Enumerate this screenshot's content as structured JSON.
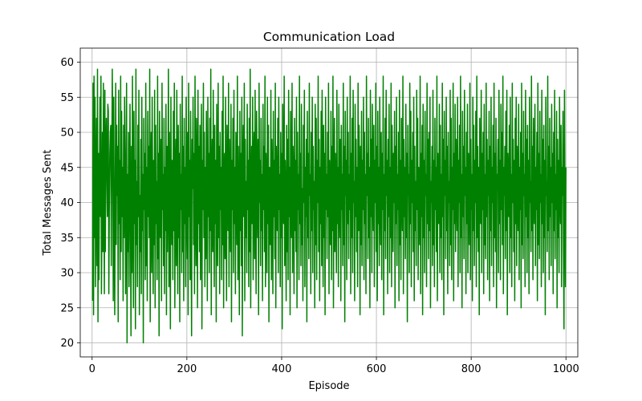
{
  "chart_data": {
    "type": "line",
    "title": "Communication Load",
    "xlabel": "Episode",
    "ylabel": "Total Messages Sent",
    "xlim": [
      -25,
      1025
    ],
    "ylim": [
      18,
      62
    ],
    "xticks": [
      0,
      200,
      400,
      600,
      800,
      1000
    ],
    "yticks": [
      20,
      25,
      30,
      35,
      40,
      45,
      50,
      55,
      60
    ],
    "grid": true,
    "series": [
      {
        "color": "#008000",
        "x_start": 1,
        "x_step": 1,
        "values": [
          26,
          57,
          24,
          58,
          35,
          55,
          28,
          42,
          52,
          31,
          59,
          23,
          47,
          29,
          44,
          55,
          38,
          58,
          27,
          36,
          50,
          33,
          57,
          41,
          27,
          56,
          33,
          48,
          52,
          44,
          38,
          54,
          53,
          27,
          39,
          47,
          50,
          51,
          31,
          45,
          59,
          49,
          26,
          55,
          36,
          24,
          42,
          57,
          34,
          51,
          41,
          48,
          23,
          56,
          37,
          46,
          29,
          58,
          33,
          53,
          38,
          45,
          26,
          51,
          35,
          55,
          47,
          27,
          39,
          57,
          20,
          44,
          33,
          50,
          28,
          42,
          54,
          36,
          21,
          48,
          30,
          58,
          40,
          25,
          53,
          37,
          46,
          22,
          59,
          34,
          43,
          28,
          51,
          38,
          56,
          24,
          41,
          33,
          49,
          27,
          55,
          36,
          44,
          20,
          52,
          39,
          47,
          29,
          57,
          31,
          45,
          26,
          53,
          38,
          48,
          35,
          59,
          23,
          42,
          50,
          30,
          55,
          40,
          27,
          46,
          34,
          56,
          25,
          51,
          37,
          43,
          29,
          58,
          32,
          47,
          21,
          53,
          41,
          35,
          49,
          26,
          57,
          39,
          44,
          31,
          52,
          27,
          45,
          36,
          54,
          24,
          48,
          33,
          42,
          59,
          28,
          50,
          38,
          22,
          55,
          41,
          34,
          46,
          29,
          53,
          36,
          57,
          25,
          43,
          49,
          31,
          56,
          40,
          27,
          51,
          35,
          47,
          23,
          54,
          39,
          44,
          30,
          58,
          33,
          48,
          26,
          52,
          37,
          45,
          28,
          55,
          41,
          32,
          50,
          24,
          57,
          38,
          46,
          29,
          53,
          36,
          21,
          49,
          42,
          55,
          34,
          47,
          27,
          58,
          40,
          31,
          52,
          44,
          25,
          56,
          37,
          48,
          33,
          51,
          29,
          43,
          54,
          22,
          46,
          39,
          57,
          35,
          50,
          28,
          45,
          32,
          53,
          41,
          26,
          55,
          38,
          47,
          30,
          52,
          36,
          59,
          24,
          44,
          49,
          33,
          56,
          40,
          28,
          51,
          37,
          46,
          23,
          54,
          42,
          31,
          57,
          35,
          48,
          27,
          50,
          39,
          45,
          29,
          53,
          34,
          58,
          25,
          43,
          47,
          32,
          55,
          38,
          26,
          51,
          44,
          36,
          57,
          28,
          49,
          41,
          33,
          54,
          23,
          46,
          39,
          52,
          30,
          56,
          37,
          45,
          27,
          50,
          42,
          34,
          58,
          29,
          48,
          40,
          24,
          53,
          36,
          47,
          31,
          55,
          21,
          44,
          51,
          38,
          57,
          26,
          49,
          35,
          43,
          30,
          54,
          39,
          46,
          28,
          52,
          33,
          59,
          25,
          41,
          48,
          37,
          55,
          29,
          45,
          50,
          32,
          56,
          38,
          27,
          53,
          43,
          35,
          49,
          24,
          57,
          40,
          46,
          31,
          52,
          36,
          44,
          26,
          54,
          39,
          48,
          33,
          58,
          28,
          47,
          42,
          30,
          55,
          37,
          51,
          23,
          45,
          40,
          34,
          56,
          29,
          49,
          43,
          27,
          53,
          38,
          46,
          32,
          57,
          25,
          48,
          41,
          36,
          52,
          30,
          55,
          39,
          44,
          28,
          50,
          35,
          47,
          22,
          54,
          42,
          37,
          58,
          31,
          46,
          40,
          26,
          51,
          33,
          49,
          29,
          56,
          38,
          45,
          24,
          53,
          41,
          35,
          57,
          30,
          48,
          43,
          27,
          52,
          36,
          46,
          33,
          55,
          25,
          50,
          39,
          44,
          29,
          58,
          37,
          47,
          31,
          54,
          34,
          42,
          26,
          51,
          40,
          56,
          28,
          45,
          38,
          49,
          23,
          53,
          35,
          47,
          32,
          57,
          41,
          44,
          27,
          50,
          36,
          55,
          30,
          48,
          39,
          43,
          25,
          54,
          34,
          52,
          29,
          46,
          40,
          58,
          33,
          49,
          26,
          45,
          37,
          53,
          31,
          56,
          42,
          28,
          51,
          35,
          47,
          24,
          55,
          39,
          44,
          32,
          50,
          38,
          57,
          27,
          46,
          41,
          34,
          53,
          29,
          48,
          36,
          58,
          25,
          43,
          52,
          33,
          47,
          40,
          30,
          56,
          37,
          45,
          28,
          54,
          42,
          35,
          49,
          26,
          51,
          39,
          44,
          31,
          57,
          34,
          48,
          23,
          53,
          41,
          46,
          29,
          55,
          37,
          50,
          32,
          44,
          39,
          58,
          27,
          47,
          35,
          52,
          30,
          56,
          40,
          43,
          26,
          54,
          38,
          49,
          33,
          45,
          28,
          57,
          36,
          51,
          42,
          24,
          48,
          34,
          53,
          31,
          46,
          39,
          55,
          29,
          50,
          37,
          44,
          27,
          58,
          41,
          47,
          32,
          52,
          35,
          45,
          25,
          56,
          38,
          49,
          30,
          54,
          43,
          36,
          51,
          28,
          46,
          40,
          57,
          33,
          48,
          26,
          53,
          37,
          45,
          31,
          55,
          42,
          34,
          50,
          29,
          47,
          39,
          58,
          24,
          44,
          36,
          52,
          32,
          56,
          41,
          46,
          27,
          49,
          38,
          54,
          30,
          45,
          35,
          57,
          28,
          51,
          43,
          33,
          47,
          40,
          53,
          25,
          48,
          37,
          55,
          31,
          44,
          39,
          50,
          26,
          56,
          34,
          46,
          29,
          52,
          42,
          36,
          58,
          27,
          49,
          38,
          45,
          32,
          54,
          35,
          47,
          23,
          51,
          41,
          44,
          30,
          57,
          37,
          53,
          28,
          46,
          40,
          50,
          33,
          55,
          26,
          48,
          36,
          43,
          31,
          56,
          39,
          52,
          29,
          45,
          42,
          34,
          58,
          27,
          47,
          38,
          51,
          24,
          54,
          35,
          46,
          30,
          53,
          41,
          44,
          28,
          57,
          37,
          49,
          32,
          50,
          36,
          55,
          25,
          43,
          40,
          48,
          31,
          56,
          34,
          46,
          28,
          52,
          39,
          45,
          33,
          58,
          26,
          47,
          42,
          37,
          54,
          30,
          51,
          35,
          44,
          29,
          57,
          38,
          49,
          24,
          53,
          41,
          46,
          32,
          55,
          36,
          48,
          27,
          50,
          40,
          43,
          31,
          56,
          34,
          52,
          29,
          45,
          39,
          57,
          26,
          47,
          37,
          54,
          33,
          49,
          42,
          36,
          55,
          28,
          46,
          40,
          51,
          30,
          58,
          35,
          44,
          25,
          53,
          38,
          48,
          32,
          56,
          41,
          45,
          27,
          50,
          37,
          54,
          30,
          47,
          43,
          34,
          57,
          29,
          49,
          39,
          44,
          26,
          55,
          36,
          51,
          31,
          46,
          40,
          53,
          28,
          58,
          35,
          48,
          33,
          45,
          24,
          52,
          42,
          37,
          56,
          30,
          47,
          39,
          50,
          27,
          54,
          34,
          44,
          32,
          57,
          38,
          49,
          29,
          46,
          41,
          53,
          26,
          48,
          36,
          55,
          31,
          45,
          40,
          51,
          28,
          57,
          35,
          47,
          33,
          52,
          25,
          44,
          42,
          49,
          30,
          56,
          37,
          46,
          29,
          54,
          39,
          50,
          34,
          58,
          27,
          45,
          41,
          48,
          32,
          53,
          36,
          56,
          24,
          47,
          43,
          38,
          51,
          30,
          55,
          35,
          44,
          28,
          57,
          40,
          49,
          33,
          46,
          26,
          52,
          37,
          55,
          31,
          48,
          42,
          36,
          54,
          29,
          45,
          39,
          50,
          25,
          57,
          34,
          47,
          32,
          53,
          41,
          44,
          28,
          56,
          38,
          49,
          30,
          51,
          35,
          46,
          27,
          55,
          40,
          43,
          33,
          58,
          36,
          48,
          29,
          52,
          42,
          37,
          54,
          31,
          45,
          39,
          50,
          26,
          57,
          34,
          47,
          32,
          53,
          40,
          44,
          28,
          56,
          37,
          49,
          30,
          51,
          35,
          46,
          24,
          55,
          41,
          43,
          33,
          58,
          36,
          48,
          29,
          52,
          38,
          45,
          31,
          54,
          40,
          47,
          27,
          50,
          36,
          56,
          32,
          44,
          39,
          53,
          25,
          49,
          35,
          46,
          30,
          55,
          42,
          37,
          51,
          28,
          45,
          41,
          53,
          33,
          22,
          56,
          40,
          28,
          45
        ]
      }
    ]
  }
}
